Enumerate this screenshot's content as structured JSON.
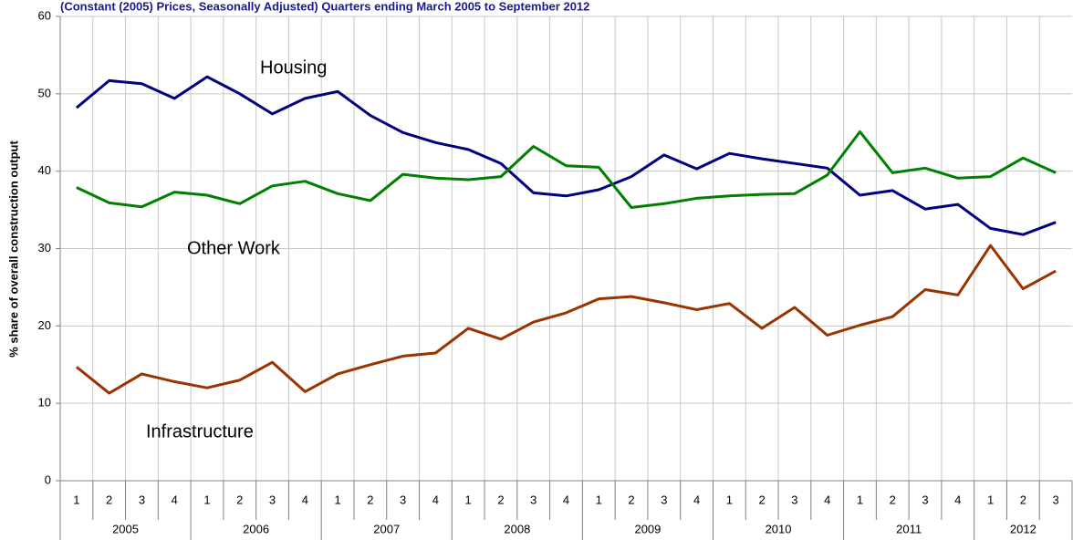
{
  "chart_data": {
    "type": "line",
    "title": "(Constant (2005) Prices, Seasonally Adjusted) Quarters ending March 2005 to September 2012",
    "y_label": "% share of overall construction output",
    "categories": [
      "1",
      "2",
      "3",
      "4",
      "1",
      "2",
      "3",
      "4",
      "1",
      "2",
      "3",
      "4",
      "1",
      "2",
      "3",
      "4",
      "1",
      "2",
      "3",
      "4",
      "1",
      "2",
      "3",
      "4",
      "1",
      "2",
      "3",
      "4",
      "1",
      "2",
      "3"
    ],
    "years": [
      "2005",
      "2006",
      "2007",
      "2008",
      "2009",
      "2010",
      "2011",
      "2012"
    ],
    "series": [
      {
        "name": "Housing",
        "color": "#000080",
        "values": [
          48.2,
          51.7,
          51.3,
          49.4,
          52.2,
          50,
          47.4,
          49.4,
          50.3,
          47.2,
          45,
          43.7,
          42.8,
          41,
          37.2,
          36.8,
          37.6,
          39.3,
          42.1,
          40.3,
          42.3,
          41.6,
          41,
          40.4,
          36.9,
          37.5,
          35.1,
          35.7,
          32.6,
          31.8,
          33.4
        ]
      },
      {
        "name": "Other Work",
        "color": "#008000",
        "values": [
          37.9,
          35.9,
          35.4,
          37.3,
          36.9,
          35.8,
          38.1,
          38.7,
          37.1,
          36.2,
          39.6,
          39.1,
          38.9,
          39.3,
          43.2,
          40.7,
          40.5,
          35.3,
          35.8,
          36.5,
          36.8,
          37,
          37.1,
          39.5,
          45.1,
          39.8,
          40.4,
          39.1,
          39.3,
          41.7,
          39.8
        ]
      },
      {
        "name": "Infrastructure",
        "color": "#993300",
        "values": [
          14.7,
          11.3,
          13.8,
          12.8,
          12,
          13,
          15.3,
          11.5,
          13.8,
          15,
          16.1,
          16.5,
          19.7,
          18.3,
          20.5,
          21.7,
          23.5,
          23.8,
          23,
          22.1,
          22.9,
          19.7,
          22.4,
          18.8,
          20.1,
          21.2,
          24.7,
          24,
          30.4,
          24.8,
          27.1
        ]
      }
    ],
    "ylim": [
      0,
      60
    ],
    "yticks": [
      0,
      10,
      20,
      30,
      40,
      50,
      60
    ],
    "grid": true
  }
}
